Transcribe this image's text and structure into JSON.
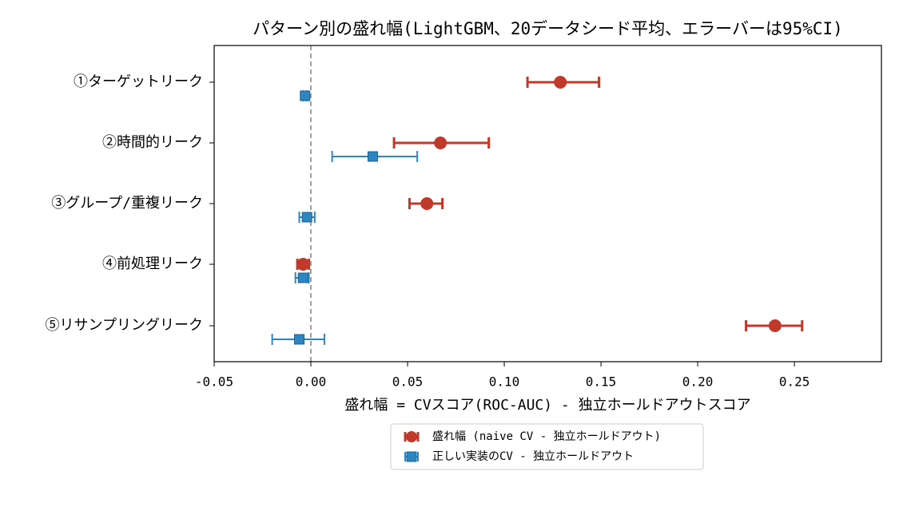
{
  "chart_data": {
    "type": "errorbar",
    "title": "パターン別の盛れ幅(LightGBM、20データシード平均、エラーバーは95%CI)",
    "xlabel": "盛れ幅 = CVスコア(ROC-AUC) - 独立ホールドアウトスコア",
    "ylabel": "",
    "xlim": [
      -0.05,
      0.295
    ],
    "xticks": [
      -0.05,
      0.0,
      0.05,
      0.1,
      0.15,
      0.2,
      0.25
    ],
    "xtick_labels": [
      "-0.05",
      "0.00",
      "0.05",
      "0.10",
      "0.15",
      "0.20",
      "0.25"
    ],
    "reference_line": {
      "x": 0.0,
      "style": "dashed",
      "color": "#808080"
    },
    "categories": [
      "①ターゲットリーク",
      "②時間的リーク",
      "③グループ/重複リーク",
      "④前処理リーク",
      "⑤リサンプリングリーク"
    ],
    "series": [
      {
        "name": "盛れ幅 (naive CV - 独立ホールドアウト)",
        "color": "#c0392b",
        "marker": "circle",
        "values": [
          0.129,
          0.067,
          0.06,
          -0.004,
          0.24
        ],
        "ci_low": [
          0.112,
          0.043,
          0.051,
          -0.007,
          0.225
        ],
        "ci_high": [
          0.149,
          0.092,
          0.068,
          -0.001,
          0.254
        ]
      },
      {
        "name": "正しい実装のCV - 独立ホールドアウト",
        "color": "#2e86c1",
        "marker": "square",
        "values": [
          -0.003,
          0.032,
          -0.002,
          -0.004,
          -0.006
        ],
        "ci_low": [
          -0.004,
          0.011,
          -0.006,
          -0.008,
          -0.02
        ],
        "ci_high": [
          -0.002,
          0.055,
          0.002,
          -0.001,
          0.007
        ]
      }
    ],
    "legend_position": "bottom-center",
    "grid": false
  }
}
